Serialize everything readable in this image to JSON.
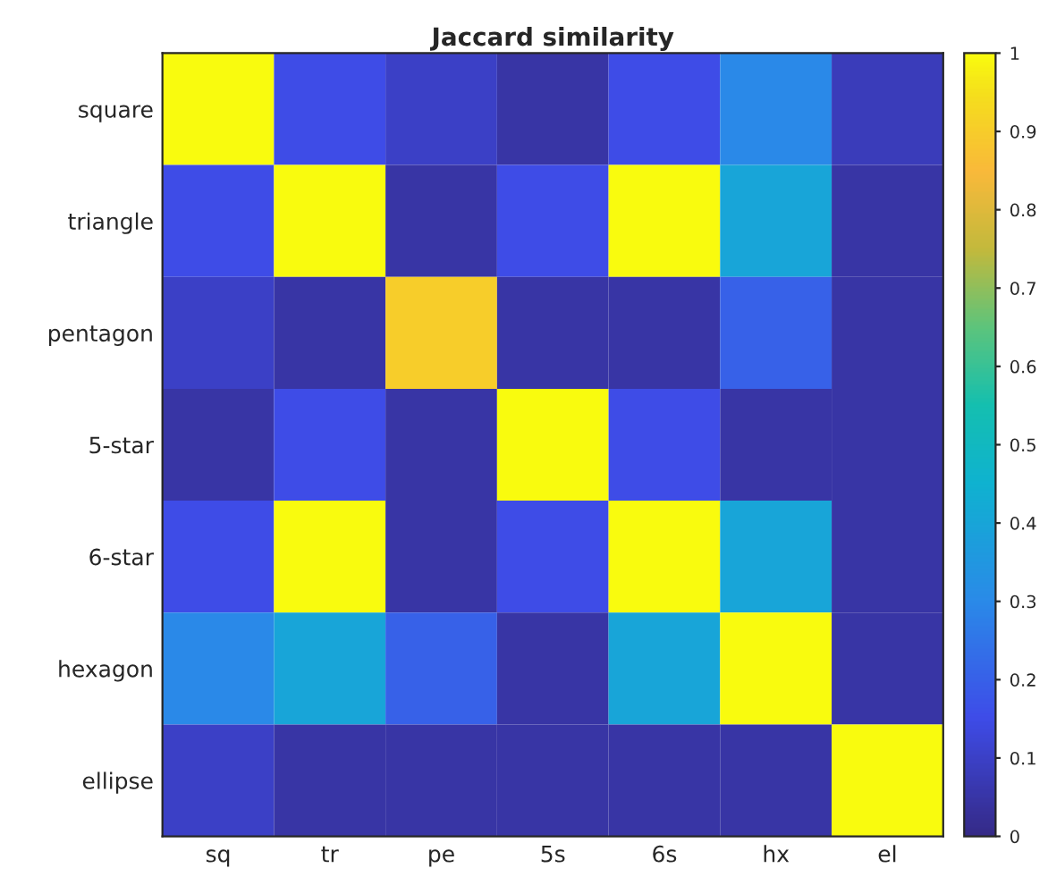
{
  "chart_data": {
    "type": "heatmap",
    "title": "Jaccard similarity",
    "categories": [
      "sq",
      "tr",
      "pe",
      "5s",
      "6s",
      "hx",
      "el"
    ],
    "y_categories": [
      "square",
      "triangle",
      "pentagon",
      "5-star",
      "6-star",
      "hexagon",
      "ellipse"
    ],
    "cells": [
      [
        1,
        0.15,
        0.1,
        0.05,
        0.15,
        0.3,
        0.08
      ],
      [
        0.15,
        1,
        0.05,
        0.15,
        1,
        0.4,
        0.05
      ],
      [
        0.1,
        0.05,
        0.9,
        0.05,
        0.05,
        0.2,
        0.05
      ],
      [
        0.05,
        0.15,
        0.05,
        1,
        0.15,
        0.05,
        0.05
      ],
      [
        0.15,
        1,
        0.05,
        0.15,
        1,
        0.4,
        0.05
      ],
      [
        0.3,
        0.4,
        0.2,
        0.05,
        0.4,
        1,
        0.05
      ],
      [
        0.1,
        0.05,
        0.05,
        0.05,
        0.05,
        0.05,
        1
      ]
    ],
    "clim": [
      0,
      1
    ],
    "cticks": [
      0,
      0.1,
      0.2,
      0.3,
      0.4,
      0.5,
      0.6,
      0.7,
      0.8,
      0.9,
      1
    ]
  }
}
